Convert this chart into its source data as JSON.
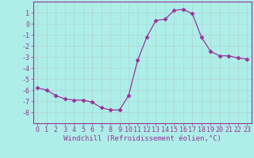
{
  "x": [
    0,
    1,
    2,
    3,
    4,
    5,
    6,
    7,
    8,
    9,
    10,
    11,
    12,
    13,
    14,
    15,
    16,
    17,
    18,
    19,
    20,
    21,
    22,
    23
  ],
  "y": [
    -5.8,
    -6.0,
    -6.5,
    -6.8,
    -6.9,
    -6.9,
    -7.1,
    -7.6,
    -7.8,
    -7.8,
    -6.5,
    -3.3,
    -1.2,
    0.3,
    0.4,
    1.2,
    1.3,
    0.9,
    -1.2,
    -2.5,
    -2.9,
    -2.9,
    -3.1,
    -3.2
  ],
  "line_color": "#993399",
  "marker": "D",
  "marker_size": 2.5,
  "bg_color": "#aeeee8",
  "grid_color": "#b0d8d4",
  "xlabel": "Windchill (Refroidissement éolien,°C)",
  "ylim": [
    -9,
    2
  ],
  "xlim": [
    -0.5,
    23.5
  ],
  "yticks": [
    1,
    0,
    -1,
    -2,
    -3,
    -4,
    -5,
    -6,
    -7,
    -8
  ],
  "xticks": [
    0,
    1,
    2,
    3,
    4,
    5,
    6,
    7,
    8,
    9,
    10,
    11,
    12,
    13,
    14,
    15,
    16,
    17,
    18,
    19,
    20,
    21,
    22,
    23
  ],
  "tick_color": "#993399",
  "label_color": "#993399",
  "label_fontsize": 6.5,
  "tick_fontsize": 6.0,
  "spine_color": "#993399"
}
